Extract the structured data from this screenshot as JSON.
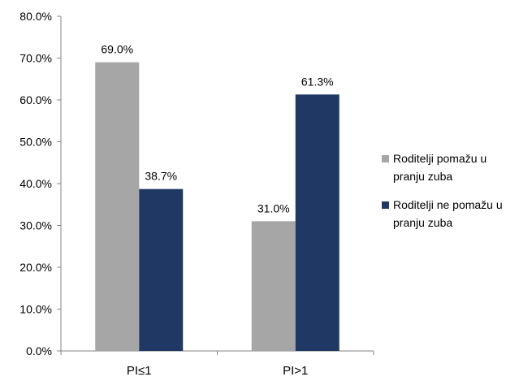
{
  "chart_data": {
    "type": "bar",
    "categories": [
      "PI≤1",
      "PI>1"
    ],
    "series": [
      {
        "name": "Roditelji pomažu u pranju zuba",
        "values": [
          69.0,
          31.0
        ],
        "color": "#a6a6a6"
      },
      {
        "name": "Roditelji ne pomažu u pranju zuba",
        "values": [
          38.7,
          61.3
        ],
        "color": "#1f3864"
      }
    ],
    "data_labels": [
      [
        "69.0%",
        "31.0%"
      ],
      [
        "38.7%",
        "61.3%"
      ]
    ],
    "y_ticks": [
      "0.0%",
      "10.0%",
      "20.0%",
      "30.0%",
      "40.0%",
      "50.0%",
      "60.0%",
      "70.0%",
      "80.0%"
    ],
    "ylim": [
      0,
      80
    ],
    "grid": false,
    "legend_position": "right",
    "legend_lines": [
      [
        "Roditelji pomažu u",
        "pranju zuba"
      ],
      [
        "Roditelji ne pomažu u",
        "pranju zuba"
      ]
    ]
  }
}
